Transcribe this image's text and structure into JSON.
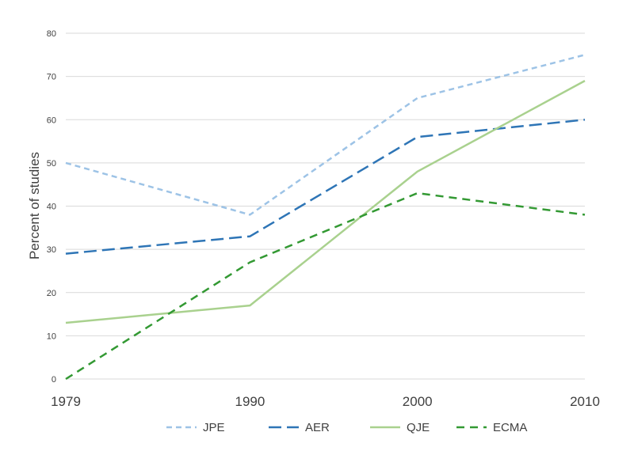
{
  "chart_data": {
    "type": "line",
    "title": "",
    "xlabel": "",
    "ylabel": "Percent of studies",
    "categories": [
      "1979",
      "1990",
      "2000",
      "2010"
    ],
    "x": [
      1979,
      1990,
      2000,
      2010
    ],
    "ylim": [
      0,
      80
    ],
    "yticks": [
      "0",
      "10",
      "20",
      "30",
      "40",
      "50",
      "60",
      "70",
      "80"
    ],
    "grid": true,
    "legend_position": "bottom",
    "series": [
      {
        "name": "JPE",
        "values": [
          50,
          38,
          65,
          75
        ],
        "color": "#9dc3e6",
        "dash": "short-dash"
      },
      {
        "name": "AER",
        "values": [
          29,
          33,
          56,
          60
        ],
        "color": "#2e75b6",
        "dash": "long-dash"
      },
      {
        "name": "QJE",
        "values": [
          13,
          17,
          48,
          69
        ],
        "color": "#a9d18e",
        "dash": "solid"
      },
      {
        "name": "ECMA",
        "values": [
          0,
          27,
          43,
          38
        ],
        "color": "#339933",
        "dash": "dash"
      }
    ]
  }
}
